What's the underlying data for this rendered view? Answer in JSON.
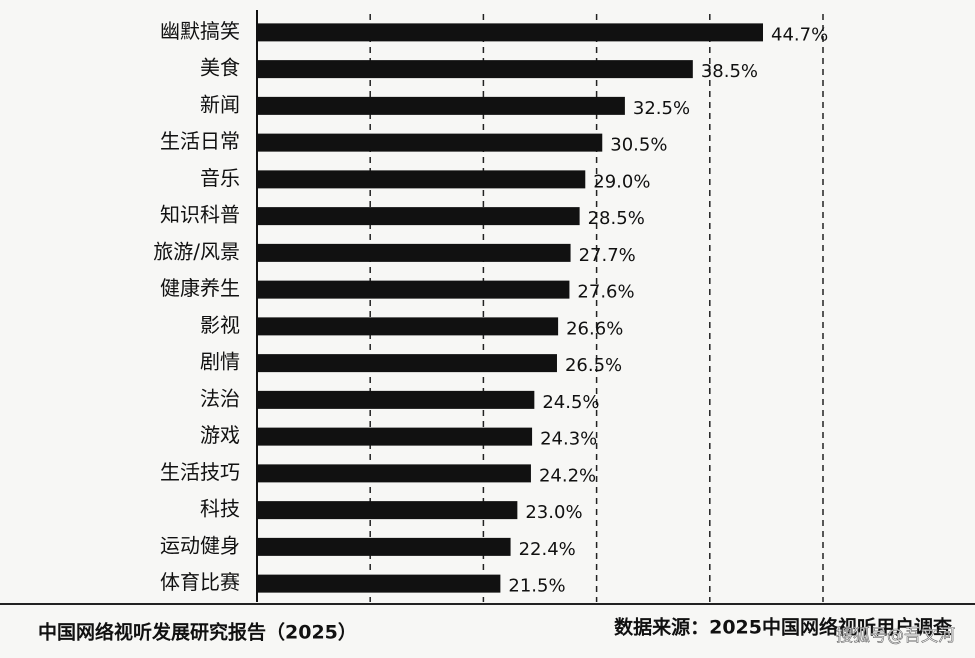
{
  "chart_data": {
    "type": "bar",
    "orientation": "horizontal",
    "categories": [
      "幽默搞笑",
      "美食",
      "新闻",
      "生活日常",
      "音乐",
      "知识科普",
      "旅游/风景",
      "健康养生",
      "影视",
      "剧情",
      "法治",
      "游戏",
      "生活技巧",
      "科技",
      "运动健身",
      "体育比赛"
    ],
    "values": [
      44.7,
      38.5,
      32.5,
      30.5,
      29.0,
      28.5,
      27.7,
      27.6,
      26.6,
      26.5,
      24.5,
      24.3,
      24.2,
      23.0,
      22.4,
      21.5
    ],
    "value_labels": [
      "44.7%",
      "38.5%",
      "32.5%",
      "30.5%",
      "29.0%",
      "28.5%",
      "27.7%",
      "27.6%",
      "26.6%",
      "26.5%",
      "24.5%",
      "24.3%",
      "24.2%",
      "23.0%",
      "22.4%",
      "21.5%"
    ],
    "color": "#111111",
    "xlim": [
      0,
      50
    ],
    "xticks": [
      10,
      20,
      30,
      40,
      50
    ],
    "grid": true,
    "footer_left": "中国网络视听发展研究报告（2025）",
    "footer_right": "数据来源：2025中国网络视听用户调查",
    "watermark": "搜狐号@吾文河"
  }
}
